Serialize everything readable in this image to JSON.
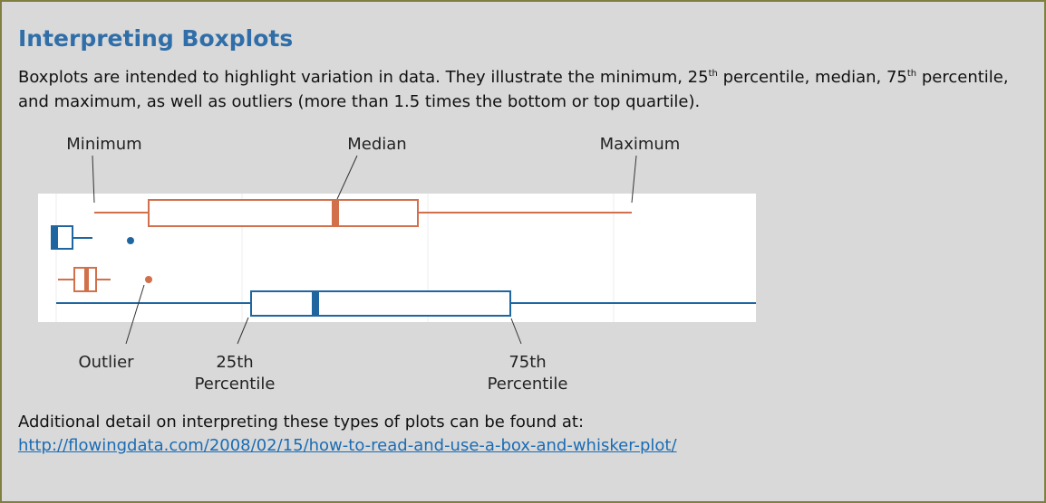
{
  "header": {
    "title": "Interpreting Boxplots"
  },
  "intro": {
    "parts": [
      "Boxplots are intended to highlight variation in data. They illustrate the minimum, 25",
      "th",
      " percentile, median, 75",
      "th",
      " percentile, and maximum, as well as outliers (more than 1.5 times the bottom or top quartile)."
    ]
  },
  "labels": {
    "minimum": "Minimum",
    "median": "Median",
    "maximum": "Maximum",
    "outlier": "Outlier",
    "p25": [
      "25th",
      "Percentile"
    ],
    "p75": [
      "75th",
      "Percentile"
    ]
  },
  "footer": {
    "text": "Additional detail on interpreting these types of plots can be found at:",
    "link": "http://flowingdata.com/2008/02/15/how-to-read-and-use-a-box-and-whisker-plot/"
  }
}
